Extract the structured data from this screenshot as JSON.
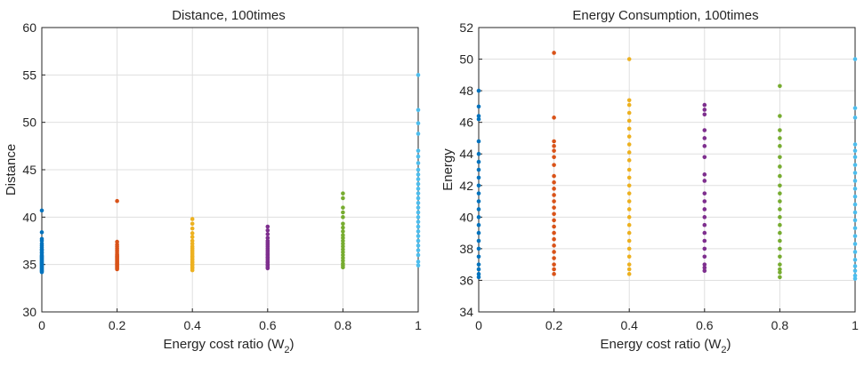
{
  "chart_data": [
    {
      "type": "scatter",
      "title": "Distance, 100times",
      "xlabel": "Energy cost ratio (W",
      "xlabel_sub": "2",
      "xlabel_suffix": ")",
      "ylabel": "Distance",
      "xlim": [
        0,
        1
      ],
      "ylim": [
        30,
        60
      ],
      "xticks": [
        0,
        0.2,
        0.4,
        0.6,
        0.8,
        1
      ],
      "xtick_labels": [
        "0",
        "0.2",
        "0.4",
        "0.6",
        "0.8",
        "1"
      ],
      "yticks": [
        30,
        35,
        40,
        45,
        50,
        55,
        60
      ],
      "ytick_labels": [
        "30",
        "35",
        "40",
        "45",
        "50",
        "55",
        "60"
      ],
      "grid": true,
      "series": [
        {
          "x": 0,
          "color": "#0072BD",
          "values": [
            40.7,
            38.4,
            37.7,
            37.5,
            37.2,
            37.0,
            36.8,
            36.6,
            36.5,
            36.3,
            36.2,
            36.0,
            35.9,
            35.8,
            35.7,
            35.6,
            35.5,
            35.4,
            35.3,
            35.2,
            35.1,
            35.0,
            34.9,
            34.8,
            34.7,
            34.6,
            34.5,
            34.4,
            34.3,
            34.2
          ]
        },
        {
          "x": 0.2,
          "color": "#D95319",
          "values": [
            41.7,
            37.4,
            37.1,
            36.9,
            36.7,
            36.5,
            36.3,
            36.1,
            36.0,
            35.9,
            35.8,
            35.7,
            35.6,
            35.5,
            35.4,
            35.3,
            35.2,
            35.1,
            35.0,
            34.9,
            34.8,
            34.7,
            34.6,
            34.5
          ]
        },
        {
          "x": 0.4,
          "color": "#EDB120",
          "values": [
            39.8,
            39.3,
            38.8,
            38.3,
            37.9,
            37.5,
            37.2,
            36.9,
            36.7,
            36.5,
            36.3,
            36.1,
            35.9,
            35.8,
            35.6,
            35.5,
            35.3,
            35.2,
            35.0,
            34.9,
            34.7,
            34.6,
            34.4
          ]
        },
        {
          "x": 0.6,
          "color": "#7E2F8E",
          "values": [
            39.0,
            38.6,
            38.2,
            37.8,
            37.5,
            37.3,
            37.1,
            36.9,
            36.7,
            36.5,
            36.3,
            36.1,
            36.0,
            35.8,
            35.7,
            35.5,
            35.3,
            35.2,
            35.0,
            34.9,
            34.7,
            34.6
          ]
        },
        {
          "x": 0.8,
          "color": "#77AC30",
          "values": [
            42.5,
            42.0,
            41.0,
            40.5,
            40.0,
            39.3,
            38.9,
            38.5,
            38.1,
            37.8,
            37.5,
            37.2,
            36.9,
            36.6,
            36.3,
            36.0,
            35.7,
            35.4,
            35.1,
            34.9,
            34.7
          ]
        },
        {
          "x": 1,
          "color": "#4DBEEE",
          "values": [
            55.0,
            51.3,
            49.9,
            48.8,
            47.0,
            46.4,
            45.7,
            45.0,
            44.5,
            44.0,
            43.5,
            43.0,
            42.5,
            42.0,
            41.5,
            41.0,
            40.5,
            40.0,
            39.5,
            39.0,
            38.5,
            38.0,
            37.5,
            37.0,
            36.5,
            36.0,
            35.3,
            34.9
          ]
        }
      ]
    },
    {
      "type": "scatter",
      "title": "Energy Consumption, 100times",
      "xlabel": "Energy cost ratio (W",
      "xlabel_sub": "2",
      "xlabel_suffix": ")",
      "ylabel": "Energy",
      "xlim": [
        0,
        1
      ],
      "ylim": [
        34,
        52
      ],
      "xticks": [
        0,
        0.2,
        0.4,
        0.6,
        0.8,
        1
      ],
      "xtick_labels": [
        "0",
        "0.2",
        "0.4",
        "0.6",
        "0.8",
        "1"
      ],
      "yticks": [
        34,
        36,
        38,
        40,
        42,
        44,
        46,
        48,
        50,
        52
      ],
      "ytick_labels": [
        "34",
        "36",
        "38",
        "40",
        "42",
        "44",
        "46",
        "48",
        "50",
        "52"
      ],
      "grid": true,
      "series": [
        {
          "x": 0,
          "color": "#0072BD",
          "values": [
            48.0,
            47.0,
            46.4,
            46.2,
            44.8,
            44.0,
            43.5,
            43.0,
            42.5,
            42.0,
            41.5,
            41.0,
            40.5,
            40.0,
            39.5,
            39.0,
            38.5,
            38.0,
            37.5,
            37.0,
            36.7,
            36.4,
            36.2
          ]
        },
        {
          "x": 0.2,
          "color": "#D95319",
          "values": [
            50.4,
            46.3,
            44.8,
            44.5,
            44.2,
            43.8,
            43.3,
            42.6,
            42.2,
            41.8,
            41.4,
            41.0,
            40.6,
            40.2,
            39.8,
            39.4,
            39.0,
            38.6,
            38.2,
            37.8,
            37.4,
            37.0,
            36.7,
            36.4
          ]
        },
        {
          "x": 0.4,
          "color": "#EDB120",
          "values": [
            50.0,
            47.4,
            47.1,
            46.6,
            46.1,
            45.6,
            45.1,
            44.6,
            44.1,
            43.6,
            43.0,
            42.5,
            42.0,
            41.5,
            41.0,
            40.5,
            40.0,
            39.5,
            39.0,
            38.5,
            38.0,
            37.5,
            37.0,
            36.7,
            36.4
          ]
        },
        {
          "x": 0.6,
          "color": "#7E2F8E",
          "values": [
            47.1,
            46.8,
            46.5,
            45.5,
            45.0,
            44.5,
            43.8,
            42.7,
            42.3,
            41.5,
            41.0,
            40.5,
            40.0,
            39.5,
            39.0,
            38.5,
            38.0,
            37.5,
            37.0,
            36.8,
            36.6
          ]
        },
        {
          "x": 0.8,
          "color": "#77AC30",
          "values": [
            48.3,
            46.4,
            45.5,
            45.0,
            44.5,
            43.8,
            43.2,
            42.6,
            42.0,
            41.5,
            41.0,
            40.5,
            40.0,
            39.5,
            39.0,
            38.5,
            38.0,
            37.5,
            37.0,
            36.7,
            36.5,
            36.2
          ]
        },
        {
          "x": 1,
          "color": "#4DBEEE",
          "values": [
            50.0,
            46.9,
            46.3,
            44.6,
            44.2,
            43.8,
            43.3,
            42.8,
            42.3,
            41.8,
            41.3,
            40.8,
            40.3,
            39.8,
            39.3,
            38.8,
            38.3,
            37.8,
            37.3,
            36.9,
            36.6,
            36.3,
            36.1
          ]
        }
      ]
    }
  ]
}
